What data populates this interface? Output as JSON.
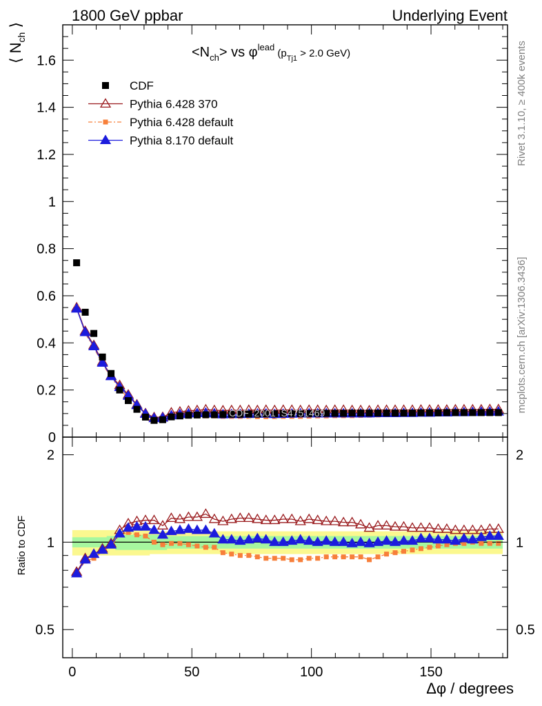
{
  "header": {
    "left_title": "1800 GeV ppbar",
    "right_title": "Underlying Event",
    "side_rivet": "Rivet 3.1.10, ≥ 400k events",
    "side_mcplots": "mcplots.cern.ch [arXiv:1306.3436]",
    "watermark": "CDF_2001_S4751469"
  },
  "main_plot": {
    "title": "<Nch> vs φlead (pTj1 > 2.0 GeV)",
    "ylabel": "⟨ Nch ⟩",
    "legend": [
      "CDF",
      "Pythia 6.428 370",
      "Pythia 6.428 default",
      "Pythia 8.170 default"
    ]
  },
  "ratio_plot": {
    "ylabel": "Ratio to CDF",
    "xlabel": "Δφ / degrees"
  },
  "colors": {
    "cdf": "#000000",
    "py6_370": "#99191c",
    "py6_default": "#f77f3a",
    "py8_default": "#1c1cdd",
    "band_inner": "#a6f79f",
    "band_outer": "#fbf88f"
  },
  "chart_data": [
    {
      "type": "scatter",
      "title": "<Nch> vs φlead (pTj1 > 2.0 GeV)",
      "xlabel": "Δφ / degrees",
      "ylabel": "⟨ Nch ⟩",
      "xlim": [
        -4,
        182
      ],
      "ylim": [
        0,
        1.75
      ],
      "x_ticks": [
        0,
        50,
        100,
        150
      ],
      "y_ticks": [
        0,
        0.2,
        0.4,
        0.6,
        0.8,
        1,
        1.2,
        1.4,
        1.6
      ],
      "legend_position": "top-left",
      "x": [
        1.8,
        5.4,
        9.0,
        12.6,
        16.2,
        19.8,
        23.4,
        27.0,
        30.6,
        34.2,
        37.8,
        41.4,
        45.0,
        48.6,
        52.2,
        55.8,
        59.4,
        63.0,
        66.6,
        70.2,
        73.8,
        77.4,
        81.0,
        84.6,
        88.2,
        91.8,
        95.4,
        99.0,
        102.6,
        106.2,
        109.8,
        113.4,
        117.0,
        120.6,
        124.2,
        127.8,
        131.4,
        135.0,
        138.6,
        142.2,
        145.8,
        149.4,
        153.0,
        156.6,
        160.2,
        163.8,
        167.4,
        171.0,
        174.6,
        178.2
      ],
      "series": [
        {
          "name": "CDF",
          "values": [
            0.74,
            0.53,
            0.44,
            0.34,
            0.27,
            0.2,
            0.155,
            0.118,
            0.085,
            0.071,
            0.074,
            0.086,
            0.09,
            0.093,
            0.094,
            0.095,
            0.095,
            0.096,
            0.097,
            0.097,
            0.098,
            0.098,
            0.099,
            0.099,
            0.1,
            0.1,
            0.1,
            0.1,
            0.101,
            0.101,
            0.101,
            0.101,
            0.102,
            0.102,
            0.102,
            0.102,
            0.102,
            0.102,
            0.102,
            0.102,
            0.103,
            0.103,
            0.103,
            0.104,
            0.104,
            0.104,
            0.104,
            0.104,
            0.104,
            0.104
          ]
        },
        {
          "name": "Pythia 6.428 370",
          "values": [
            0.55,
            0.45,
            0.39,
            0.32,
            0.26,
            0.22,
            0.18,
            0.138,
            0.101,
            0.084,
            0.085,
            0.104,
            0.108,
            0.112,
            0.114,
            0.117,
            0.114,
            0.113,
            0.114,
            0.114,
            0.115,
            0.114,
            0.115,
            0.114,
            0.115,
            0.115,
            0.114,
            0.115,
            0.115,
            0.114,
            0.115,
            0.115,
            0.114,
            0.114,
            0.113,
            0.115,
            0.115,
            0.115,
            0.115,
            0.115,
            0.116,
            0.116,
            0.116,
            0.116,
            0.117,
            0.117,
            0.117,
            0.117,
            0.118,
            0.118
          ]
        },
        {
          "name": "Pythia 6.428 default",
          "values": [
            0.55,
            0.44,
            0.38,
            0.31,
            0.255,
            0.205,
            0.165,
            0.124,
            0.087,
            0.071,
            0.072,
            0.084,
            0.087,
            0.089,
            0.09,
            0.09,
            0.09,
            0.088,
            0.088,
            0.088,
            0.088,
            0.087,
            0.087,
            0.087,
            0.088,
            0.088,
            0.088,
            0.089,
            0.09,
            0.09,
            0.091,
            0.091,
            0.091,
            0.092,
            0.093,
            0.094,
            0.095,
            0.096,
            0.097,
            0.098,
            0.1,
            0.101,
            0.102,
            0.103,
            0.104,
            0.104,
            0.104,
            0.104,
            0.104,
            0.104
          ]
        },
        {
          "name": "Pythia 8.170 default",
          "values": [
            0.545,
            0.445,
            0.385,
            0.315,
            0.258,
            0.212,
            0.175,
            0.135,
            0.098,
            0.08,
            0.082,
            0.092,
            0.097,
            0.1,
            0.101,
            0.103,
            0.1,
            0.096,
            0.097,
            0.097,
            0.098,
            0.099,
            0.099,
            0.097,
            0.098,
            0.099,
            0.1,
            0.1,
            0.1,
            0.1,
            0.1,
            0.1,
            0.1,
            0.1,
            0.1,
            0.101,
            0.101,
            0.101,
            0.102,
            0.102,
            0.103,
            0.103,
            0.104,
            0.104,
            0.105,
            0.105,
            0.106,
            0.107,
            0.107,
            0.108
          ]
        }
      ]
    },
    {
      "type": "scatter",
      "xlabel": "Δφ / degrees",
      "ylabel": "Ratio to CDF",
      "xlim": [
        -4,
        182
      ],
      "ylim": [
        0.4,
        2.3
      ],
      "log_y": true,
      "x_ticks": [
        0,
        50,
        100,
        150
      ],
      "y_ticks": [
        0.5,
        1,
        2
      ],
      "x": [
        1.8,
        5.4,
        9.0,
        12.6,
        16.2,
        19.8,
        23.4,
        27.0,
        30.6,
        34.2,
        37.8,
        41.4,
        45.0,
        48.6,
        52.2,
        55.8,
        59.4,
        63.0,
        66.6,
        70.2,
        73.8,
        77.4,
        81.0,
        84.6,
        88.2,
        91.8,
        95.4,
        99.0,
        102.6,
        106.2,
        109.8,
        113.4,
        117.0,
        120.6,
        124.2,
        127.8,
        131.4,
        135.0,
        138.6,
        142.2,
        145.8,
        149.4,
        153.0,
        156.6,
        160.2,
        163.8,
        167.4,
        171.0,
        174.6,
        178.2
      ],
      "band_inner_halfwidth": [
        0.04,
        0.04,
        0.04,
        0.04,
        0.05,
        0.06,
        0.06,
        0.06,
        0.06,
        0.06,
        0.06,
        0.05,
        0.05,
        0.05,
        0.05,
        0.05,
        0.05,
        0.05,
        0.05,
        0.05,
        0.05,
        0.05,
        0.05,
        0.05,
        0.05,
        0.05,
        0.05,
        0.05,
        0.05,
        0.05,
        0.05,
        0.05,
        0.05,
        0.05,
        0.05,
        0.05,
        0.05,
        0.05,
        0.05,
        0.05,
        0.05,
        0.05,
        0.05,
        0.05,
        0.05,
        0.05,
        0.05,
        0.05,
        0.05,
        0.05
      ],
      "band_outer_halfwidth": [
        0.1,
        0.1,
        0.1,
        0.1,
        0.1,
        0.1,
        0.1,
        0.1,
        0.1,
        0.09,
        0.09,
        0.09,
        0.09,
        0.09,
        0.09,
        0.09,
        0.09,
        0.09,
        0.09,
        0.09,
        0.09,
        0.09,
        0.09,
        0.09,
        0.09,
        0.09,
        0.09,
        0.09,
        0.09,
        0.09,
        0.09,
        0.09,
        0.09,
        0.09,
        0.09,
        0.09,
        0.09,
        0.09,
        0.09,
        0.09,
        0.09,
        0.09,
        0.09,
        0.09,
        0.09,
        0.09,
        0.09,
        0.09,
        0.09,
        0.09
      ],
      "series": [
        {
          "name": "Pythia 6.428 370",
          "values": [
            0.79,
            0.88,
            0.91,
            0.95,
            0.99,
            1.1,
            1.16,
            1.18,
            1.19,
            1.19,
            1.14,
            1.21,
            1.2,
            1.22,
            1.22,
            1.25,
            1.2,
            1.18,
            1.2,
            1.21,
            1.21,
            1.2,
            1.19,
            1.19,
            1.2,
            1.2,
            1.18,
            1.2,
            1.19,
            1.18,
            1.18,
            1.17,
            1.17,
            1.15,
            1.12,
            1.14,
            1.14,
            1.13,
            1.13,
            1.12,
            1.12,
            1.12,
            1.11,
            1.11,
            1.1,
            1.1,
            1.1,
            1.1,
            1.11,
            1.11
          ]
        },
        {
          "name": "Pythia 6.428 default",
          "values": [
            0.78,
            0.86,
            0.88,
            0.93,
            0.97,
            1.06,
            1.08,
            1.06,
            1.05,
            1.0,
            0.98,
            0.99,
            0.99,
            0.98,
            0.97,
            0.96,
            0.96,
            0.92,
            0.91,
            0.9,
            0.9,
            0.89,
            0.88,
            0.88,
            0.88,
            0.87,
            0.87,
            0.88,
            0.88,
            0.89,
            0.89,
            0.89,
            0.89,
            0.89,
            0.87,
            0.89,
            0.91,
            0.92,
            0.93,
            0.94,
            0.95,
            0.96,
            0.97,
            0.98,
            0.99,
            0.99,
            1.0,
            0.99,
            0.99,
            0.99
          ]
        },
        {
          "name": "Pythia 8.170 default",
          "values": [
            0.78,
            0.87,
            0.91,
            0.94,
            0.98,
            1.07,
            1.12,
            1.13,
            1.13,
            1.1,
            1.06,
            1.09,
            1.1,
            1.11,
            1.1,
            1.1,
            1.07,
            1.02,
            1.02,
            1.01,
            1.02,
            1.03,
            1.02,
            1.0,
            1.0,
            1.01,
            1.02,
            1.01,
            1.0,
            1.01,
            1.0,
            1.0,
            0.99,
            1.0,
            0.99,
            1.0,
            1.01,
            1.0,
            1.01,
            1.01,
            1.03,
            1.03,
            1.02,
            1.02,
            1.01,
            1.03,
            1.02,
            1.04,
            1.05,
            1.05
          ]
        }
      ]
    }
  ]
}
